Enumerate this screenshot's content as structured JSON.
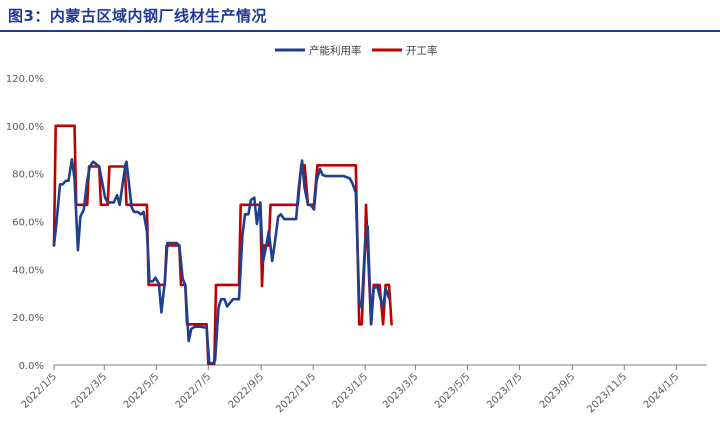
{
  "header": {
    "title": "图3：内蒙古区域内钢厂线材生产情况"
  },
  "colors": {
    "title": "#1f3a93",
    "series1": "#1f3f8f",
    "series2": "#c00000",
    "axis": "#7f7f7f"
  },
  "chart_data": {
    "type": "line",
    "title": "",
    "xlabel": "",
    "ylabel": "",
    "ylim": [
      0,
      120
    ],
    "xlim": [
      "2022-01-05",
      "2024-02-10"
    ],
    "y_ticks": [
      "0.0%",
      "20.0%",
      "40.0%",
      "60.0%",
      "80.0%",
      "100.0%",
      "120.0%"
    ],
    "x_ticks": [
      {
        "date": "2022-01-05",
        "label": "2022/1/5"
      },
      {
        "date": "2022-03-05",
        "label": "2022/3/5"
      },
      {
        "date": "2022-05-05",
        "label": "2022/5/5"
      },
      {
        "date": "2022-07-05",
        "label": "2022/7/5"
      },
      {
        "date": "2022-09-05",
        "label": "2022/9/5"
      },
      {
        "date": "2022-11-05",
        "label": "2022/11/5"
      },
      {
        "date": "2023-01-05",
        "label": "2023/1/5"
      },
      {
        "date": "2023-03-05",
        "label": "2023/3/5"
      },
      {
        "date": "2023-05-05",
        "label": "2023/5/5"
      },
      {
        "date": "2023-07-05",
        "label": "2023/7/5"
      },
      {
        "date": "2023-09-05",
        "label": "2023/9/5"
      },
      {
        "date": "2023-11-05",
        "label": "2023/11/5"
      },
      {
        "date": "2024-01-05",
        "label": "2024/1/5"
      }
    ],
    "grid": false,
    "legend_position": "top-right",
    "series": [
      {
        "name": "产能利用率",
        "color": "#1f3f8f",
        "points": [
          [
            "2022-01-05",
            50
          ],
          [
            "2022-01-08",
            60
          ],
          [
            "2022-01-12",
            75.5
          ],
          [
            "2022-01-15",
            75.5
          ],
          [
            "2022-01-19",
            77
          ],
          [
            "2022-01-22",
            77
          ],
          [
            "2022-01-26",
            86
          ],
          [
            "2022-01-29",
            78
          ],
          [
            "2022-02-02",
            48
          ],
          [
            "2022-02-05",
            62
          ],
          [
            "2022-02-09",
            65
          ],
          [
            "2022-02-13",
            77
          ],
          [
            "2022-02-16",
            83
          ],
          [
            "2022-02-20",
            85
          ],
          [
            "2022-02-27",
            83
          ],
          [
            "2022-03-06",
            70
          ],
          [
            "2022-03-09",
            68
          ],
          [
            "2022-03-16",
            68
          ],
          [
            "2022-03-20",
            71
          ],
          [
            "2022-03-23",
            67
          ],
          [
            "2022-03-30",
            84
          ],
          [
            "2022-03-31",
            85
          ],
          [
            "2022-04-06",
            66
          ],
          [
            "2022-04-09",
            64
          ],
          [
            "2022-04-13",
            64
          ],
          [
            "2022-04-17",
            63
          ],
          [
            "2022-04-20",
            64
          ],
          [
            "2022-04-24",
            56
          ],
          [
            "2022-04-27",
            35
          ],
          [
            "2022-05-01",
            35
          ],
          [
            "2022-05-04",
            36.5
          ],
          [
            "2022-05-08",
            34
          ],
          [
            "2022-05-11",
            22
          ],
          [
            "2022-05-15",
            35
          ],
          [
            "2022-05-18",
            51
          ],
          [
            "2022-05-22",
            51
          ],
          [
            "2022-05-29",
            51
          ],
          [
            "2022-06-01",
            50
          ],
          [
            "2022-06-05",
            36
          ],
          [
            "2022-06-08",
            33.5
          ],
          [
            "2022-06-12",
            10
          ],
          [
            "2022-06-15",
            15
          ],
          [
            "2022-06-19",
            16
          ],
          [
            "2022-06-26",
            16
          ],
          [
            "2022-07-03",
            15.5
          ],
          [
            "2022-07-06",
            1
          ],
          [
            "2022-07-10",
            0.5
          ],
          [
            "2022-07-13",
            2
          ],
          [
            "2022-07-17",
            24
          ],
          [
            "2022-07-20",
            27.5
          ],
          [
            "2022-07-24",
            27.5
          ],
          [
            "2022-07-27",
            24.5
          ],
          [
            "2022-08-03",
            27.5
          ],
          [
            "2022-08-10",
            27.5
          ],
          [
            "2022-08-14",
            54
          ],
          [
            "2022-08-17",
            63
          ],
          [
            "2022-08-21",
            63
          ],
          [
            "2022-08-24",
            69
          ],
          [
            "2022-08-28",
            70
          ],
          [
            "2022-08-31",
            59
          ],
          [
            "2022-09-04",
            68
          ],
          [
            "2022-09-07",
            43
          ],
          [
            "2022-09-11",
            50
          ],
          [
            "2022-09-14",
            56
          ],
          [
            "2022-09-18",
            43.5
          ],
          [
            "2022-09-21",
            51
          ],
          [
            "2022-09-25",
            62
          ],
          [
            "2022-09-28",
            63
          ],
          [
            "2022-10-02",
            61
          ],
          [
            "2022-10-09",
            61
          ],
          [
            "2022-10-16",
            61
          ],
          [
            "2022-10-19",
            74
          ],
          [
            "2022-10-23",
            85.5
          ],
          [
            "2022-10-26",
            74
          ],
          [
            "2022-10-30",
            67
          ],
          [
            "2022-11-02",
            67
          ],
          [
            "2022-11-06",
            65
          ],
          [
            "2022-11-09",
            77
          ],
          [
            "2022-11-13",
            82
          ],
          [
            "2022-11-16",
            79.5
          ],
          [
            "2022-11-20",
            79
          ],
          [
            "2022-11-27",
            79
          ],
          [
            "2022-12-04",
            79
          ],
          [
            "2022-12-11",
            79
          ],
          [
            "2022-12-18",
            78
          ],
          [
            "2022-12-21",
            76
          ],
          [
            "2022-12-25",
            72
          ],
          [
            "2022-12-29",
            27
          ],
          [
            "2023-01-01",
            24
          ],
          [
            "2023-01-05",
            52
          ],
          [
            "2023-01-08",
            58
          ],
          [
            "2023-01-12",
            17
          ],
          [
            "2023-01-15",
            32
          ],
          [
            "2023-01-19",
            33
          ],
          [
            "2023-01-22",
            29
          ],
          [
            "2023-01-26",
            24
          ],
          [
            "2023-01-29",
            32
          ],
          [
            "2023-02-02",
            28
          ]
        ]
      },
      {
        "name": "开工率",
        "color": "#c00000",
        "points": [
          [
            "2022-01-05",
            50
          ],
          [
            "2022-01-07",
            100
          ],
          [
            "2022-01-29",
            100
          ],
          [
            "2022-01-31",
            67
          ],
          [
            "2022-02-13",
            67
          ],
          [
            "2022-02-15",
            83
          ],
          [
            "2022-02-27",
            83
          ],
          [
            "2022-03-01",
            67
          ],
          [
            "2022-03-09",
            67
          ],
          [
            "2022-03-11",
            83
          ],
          [
            "2022-03-29",
            83
          ],
          [
            "2022-03-31",
            67
          ],
          [
            "2022-04-24",
            67
          ],
          [
            "2022-04-26",
            33.5
          ],
          [
            "2022-05-15",
            33.5
          ],
          [
            "2022-05-17",
            50
          ],
          [
            "2022-06-01",
            50
          ],
          [
            "2022-06-03",
            33.5
          ],
          [
            "2022-06-08",
            33.5
          ],
          [
            "2022-06-10",
            17
          ],
          [
            "2022-07-03",
            17
          ],
          [
            "2022-07-05",
            0.5
          ],
          [
            "2022-07-12",
            0.5
          ],
          [
            "2022-07-14",
            33.5
          ],
          [
            "2022-08-10",
            33.5
          ],
          [
            "2022-08-12",
            67
          ],
          [
            "2022-09-04",
            67
          ],
          [
            "2022-09-06",
            33
          ],
          [
            "2022-09-08",
            50
          ],
          [
            "2022-09-14",
            50
          ],
          [
            "2022-09-16",
            67
          ],
          [
            "2022-10-16",
            67
          ],
          [
            "2022-10-18",
            67
          ],
          [
            "2022-10-22",
            83.5
          ],
          [
            "2022-10-26",
            83.5
          ],
          [
            "2022-10-30",
            67
          ],
          [
            "2022-11-06",
            67
          ],
          [
            "2022-11-10",
            83.5
          ],
          [
            "2022-12-25",
            83.5
          ],
          [
            "2022-12-29",
            17
          ],
          [
            "2023-01-01",
            17
          ],
          [
            "2023-01-05",
            50
          ],
          [
            "2023-01-06",
            67
          ],
          [
            "2023-01-12",
            17
          ],
          [
            "2023-01-15",
            33.5
          ],
          [
            "2023-01-22",
            33.5
          ],
          [
            "2023-01-26",
            17
          ],
          [
            "2023-01-29",
            33.5
          ],
          [
            "2023-02-02",
            33.5
          ],
          [
            "2023-02-05",
            17
          ]
        ]
      }
    ]
  }
}
